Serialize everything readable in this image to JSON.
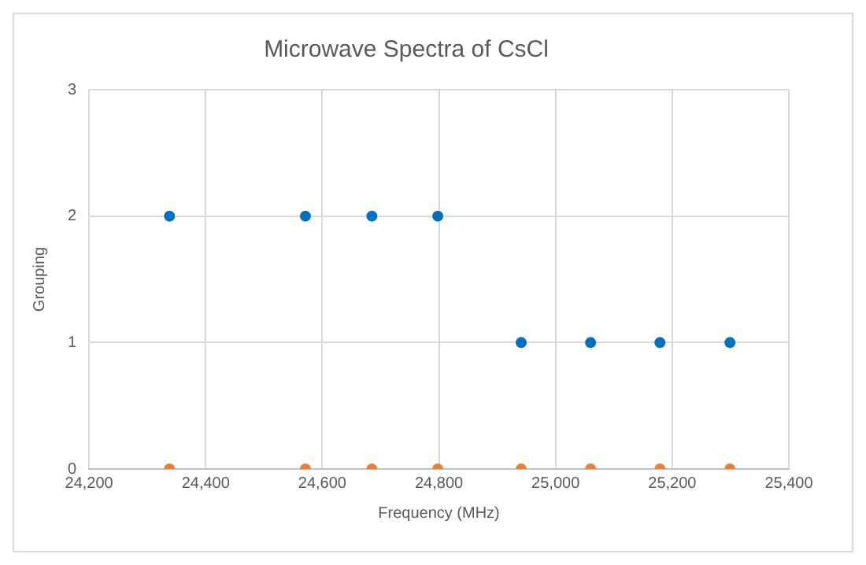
{
  "chart_data": {
    "type": "scatter",
    "title": "Microwave Spectra of CsCl",
    "xlabel": "Frequency (MHz)",
    "ylabel": "Grouping",
    "series": [
      {
        "color": "#0070c0",
        "x": [
          24338,
          24571,
          24685,
          24798,
          24941,
          25060,
          25179,
          25299
        ],
        "values": [
          2,
          2,
          2,
          2,
          1,
          1,
          1,
          1
        ]
      },
      {
        "color": "#ed7d31",
        "x": [
          24338,
          24571,
          24685,
          24798,
          24941,
          25060,
          25179,
          25299
        ],
        "values": [
          0,
          0,
          0,
          0,
          0,
          0,
          0,
          0
        ]
      }
    ],
    "xlim": [
      24200,
      25400
    ],
    "xticks": [
      {
        "value": 24200,
        "label": "24,200"
      },
      {
        "value": 24400,
        "label": "24,400"
      },
      {
        "value": 24600,
        "label": "24,600"
      },
      {
        "value": 24800,
        "label": "24,800"
      },
      {
        "value": 25000,
        "label": "25,000"
      },
      {
        "value": 25200,
        "label": "25,200"
      },
      {
        "value": 25400,
        "label": "25,400"
      }
    ],
    "ylim": [
      0,
      3
    ],
    "yticks": [
      0,
      1,
      2,
      3
    ],
    "grid": true,
    "marker": "circle",
    "legend": false
  }
}
